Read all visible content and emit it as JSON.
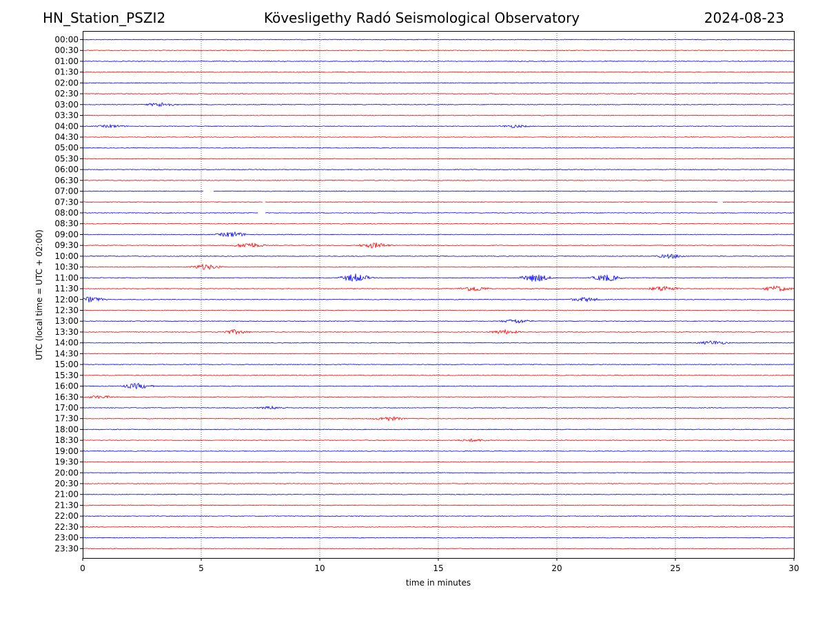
{
  "header": {
    "station": "HN_Station_PSZI2",
    "observatory": "Kövesligethy Radó Seismological Observatory",
    "date": "2024-08-23"
  },
  "colors": {
    "blue": "#0000ff",
    "red": "#ff0000",
    "grid": "#000000"
  },
  "chart_data": {
    "type": "line",
    "title": "Kövesligethy Radó Seismological Observatory",
    "xlabel": "time in minutes",
    "ylabel": "UTC (local time = UTC + 02:00)",
    "xlim": [
      0,
      30
    ],
    "x_ticks": [
      0,
      5,
      10,
      15,
      20,
      25,
      30
    ],
    "x_tick_labels": [
      "0",
      "5",
      "10",
      "15",
      "20",
      "25",
      "30"
    ],
    "rows": [
      "00:00",
      "00:30",
      "01:00",
      "01:30",
      "02:00",
      "02:30",
      "03:00",
      "03:30",
      "04:00",
      "04:30",
      "05:00",
      "05:30",
      "06:00",
      "06:30",
      "07:00",
      "07:30",
      "08:00",
      "08:30",
      "09:00",
      "09:30",
      "10:00",
      "10:30",
      "11:00",
      "11:30",
      "12:00",
      "12:30",
      "13:00",
      "13:30",
      "14:00",
      "14:30",
      "15:00",
      "15:30",
      "16:00",
      "16:30",
      "17:00",
      "17:30",
      "18:00",
      "18:30",
      "19:00",
      "19:30",
      "20:00",
      "20:30",
      "21:00",
      "21:30",
      "22:00",
      "22:30",
      "23:00",
      "23:30"
    ],
    "row_colors": [
      "blue",
      "red"
    ],
    "activity": [
      {
        "row": "03:00",
        "minute": 3.3,
        "amplitude": 3
      },
      {
        "row": "04:00",
        "minute": 1.2,
        "amplitude": 2
      },
      {
        "row": "04:00",
        "minute": 18.2,
        "amplitude": 2
      },
      {
        "row": "09:00",
        "minute": 6.3,
        "amplitude": 4
      },
      {
        "row": "09:30",
        "minute": 7.0,
        "amplitude": 4
      },
      {
        "row": "09:30",
        "minute": 12.3,
        "amplitude": 4
      },
      {
        "row": "10:00",
        "minute": 24.8,
        "amplitude": 3
      },
      {
        "row": "10:30",
        "minute": 5.2,
        "amplitude": 4
      },
      {
        "row": "11:00",
        "minute": 11.5,
        "amplitude": 6
      },
      {
        "row": "11:00",
        "minute": 19.1,
        "amplitude": 6
      },
      {
        "row": "11:00",
        "minute": 22.1,
        "amplitude": 5
      },
      {
        "row": "11:30",
        "minute": 16.5,
        "amplitude": 4
      },
      {
        "row": "11:30",
        "minute": 24.5,
        "amplitude": 4
      },
      {
        "row": "11:30",
        "minute": 29.3,
        "amplitude": 4
      },
      {
        "row": "12:00",
        "minute": 0.3,
        "amplitude": 4
      },
      {
        "row": "12:00",
        "minute": 21.2,
        "amplitude": 3
      },
      {
        "row": "13:00",
        "minute": 18.3,
        "amplitude": 3
      },
      {
        "row": "13:30",
        "minute": 6.4,
        "amplitude": 3
      },
      {
        "row": "13:30",
        "minute": 17.8,
        "amplitude": 3
      },
      {
        "row": "14:00",
        "minute": 26.6,
        "amplitude": 3
      },
      {
        "row": "16:00",
        "minute": 2.3,
        "amplitude": 4
      },
      {
        "row": "16:30",
        "minute": 0.7,
        "amplitude": 2
      },
      {
        "row": "17:00",
        "minute": 8.0,
        "amplitude": 2
      },
      {
        "row": "17:30",
        "minute": 12.9,
        "amplitude": 3
      },
      {
        "row": "18:30",
        "minute": 16.5,
        "amplitude": 2
      }
    ],
    "gaps": [
      {
        "row": "07:00",
        "from": 5.1,
        "to": 5.5
      },
      {
        "row": "07:30",
        "from": 7.6,
        "to": 7.7
      },
      {
        "row": "08:00",
        "from": 7.4,
        "to": 7.7
      },
      {
        "row": "07:30",
        "from": 26.8,
        "to": 27.0
      }
    ]
  }
}
